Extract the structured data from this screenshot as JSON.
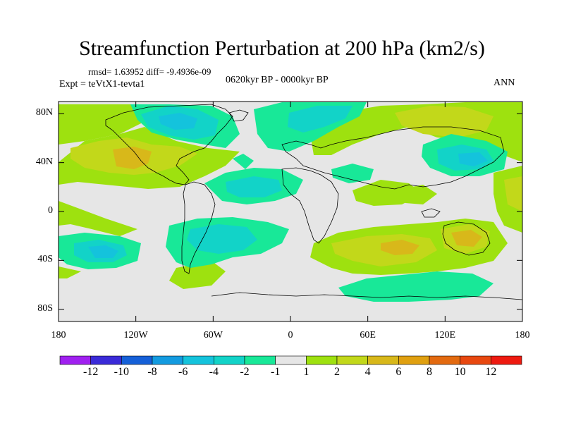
{
  "header": {
    "title": "Streamfunction Perturbation at 200 hPa (km2/s)",
    "stats": "rmsd= 1.63952 diff= -9.4936e-09",
    "center_subtitle": "0620kyr BP - 0000kyr BP",
    "left_subtitle": "Expt = teVtX1-tevta1",
    "right_subtitle": "ANN"
  },
  "axes": {
    "lat_ticks": [
      {
        "label": "80N",
        "value": 80
      },
      {
        "label": "40N",
        "value": 40
      },
      {
        "label": "0",
        "value": 0
      },
      {
        "label": "40S",
        "value": -40
      },
      {
        "label": "80S",
        "value": -80
      }
    ],
    "lon_ticks": [
      {
        "label": "180",
        "value": -180
      },
      {
        "label": "120W",
        "value": -120
      },
      {
        "label": "60W",
        "value": -60
      },
      {
        "label": "0",
        "value": 0
      },
      {
        "label": "60E",
        "value": 60
      },
      {
        "label": "120E",
        "value": 120
      },
      {
        "label": "180",
        "value": 180
      }
    ]
  },
  "legend": {
    "labels": [
      "-12",
      "-10",
      "-8",
      "-6",
      "-4",
      "-2",
      "-1",
      "1",
      "2",
      "4",
      "6",
      "8",
      "10",
      "12"
    ],
    "colors": [
      "#a020f0",
      "#3a2ad8",
      "#1560d8",
      "#139be0",
      "#14c3dc",
      "#12d3c8",
      "#18e898",
      "#e6e6e6",
      "#9ee10f",
      "#c2d81a",
      "#d8b81a",
      "#e0a010",
      "#e36a10",
      "#e84810",
      "#ee1a10"
    ]
  },
  "map_data": {
    "field": "200 hPa streamfunction perturbation",
    "units": "km2/s",
    "positive_centers": [
      {
        "lon": -120,
        "lat": 40,
        "level": "4"
      },
      {
        "lon": 85,
        "lat": -30,
        "level": "4"
      },
      {
        "lon": 150,
        "lat": -30,
        "level": "4"
      },
      {
        "lon": 130,
        "lat": 60,
        "level": "2"
      },
      {
        "lon": -60,
        "lat": -60,
        "level": "2"
      }
    ],
    "negative_centers": [
      {
        "lon": -80,
        "lat": 65,
        "level": "-4"
      },
      {
        "lon": -150,
        "lat": -35,
        "level": "-4"
      },
      {
        "lon": -55,
        "lat": 15,
        "level": "-2"
      },
      {
        "lon": 125,
        "lat": 40,
        "level": "-4"
      },
      {
        "lon": 110,
        "lat": -55,
        "level": "-2"
      }
    ]
  }
}
